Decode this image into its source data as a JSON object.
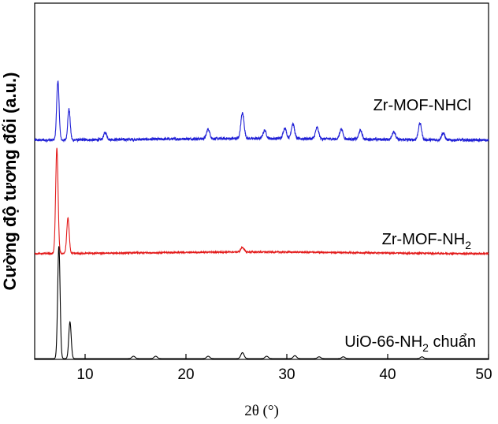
{
  "chart_data": {
    "type": "line",
    "xlabel": "2θ (°)",
    "ylabel": "Cường độ tương đối (a.u.)",
    "xlim": [
      5,
      50
    ],
    "x_ticks": [
      10,
      20,
      30,
      40,
      50
    ],
    "grid": false,
    "legend": "labels next to each trace, right side",
    "series": [
      {
        "name": "Zr-MOF-NHCl",
        "label_main": "Zr-MOF-NHCl",
        "label_sub": "",
        "label_tail": "",
        "color": "#1f1fd6",
        "noise": 2.2,
        "peaks": [
          {
            "x": 7.3,
            "y": 100
          },
          {
            "x": 8.4,
            "y": 52
          },
          {
            "x": 12.0,
            "y": 12
          },
          {
            "x": 22.2,
            "y": 16
          },
          {
            "x": 25.6,
            "y": 43
          },
          {
            "x": 27.8,
            "y": 14
          },
          {
            "x": 29.8,
            "y": 18
          },
          {
            "x": 30.6,
            "y": 25
          },
          {
            "x": 33.0,
            "y": 19
          },
          {
            "x": 35.4,
            "y": 17
          },
          {
            "x": 37.3,
            "y": 15
          },
          {
            "x": 40.6,
            "y": 14
          },
          {
            "x": 43.2,
            "y": 28
          },
          {
            "x": 45.5,
            "y": 12
          }
        ]
      },
      {
        "name": "Zr-MOF-NH2",
        "label_main": "Zr-MOF-NH",
        "label_sub": "2",
        "label_tail": "",
        "color": "#e31a1a",
        "noise": 1.2,
        "peaks": [
          {
            "x": 7.2,
            "y": 178
          },
          {
            "x": 8.3,
            "y": 60
          },
          {
            "x": 25.6,
            "y": 8
          }
        ]
      },
      {
        "name": "UiO-66-NH2 chuẩn",
        "label_main": "UiO-66-NH",
        "label_sub": "2",
        "label_tail": " chuẩn",
        "color": "#000000",
        "noise": 0,
        "peaks": [
          {
            "x": 7.4,
            "y": 190
          },
          {
            "x": 8.5,
            "y": 62
          },
          {
            "x": 14.8,
            "y": 4
          },
          {
            "x": 17.0,
            "y": 4
          },
          {
            "x": 22.2,
            "y": 4
          },
          {
            "x": 25.6,
            "y": 10
          },
          {
            "x": 28.0,
            "y": 4
          },
          {
            "x": 30.8,
            "y": 5
          },
          {
            "x": 33.2,
            "y": 3
          },
          {
            "x": 35.6,
            "y": 3
          },
          {
            "x": 43.4,
            "y": 3
          }
        ]
      }
    ]
  }
}
